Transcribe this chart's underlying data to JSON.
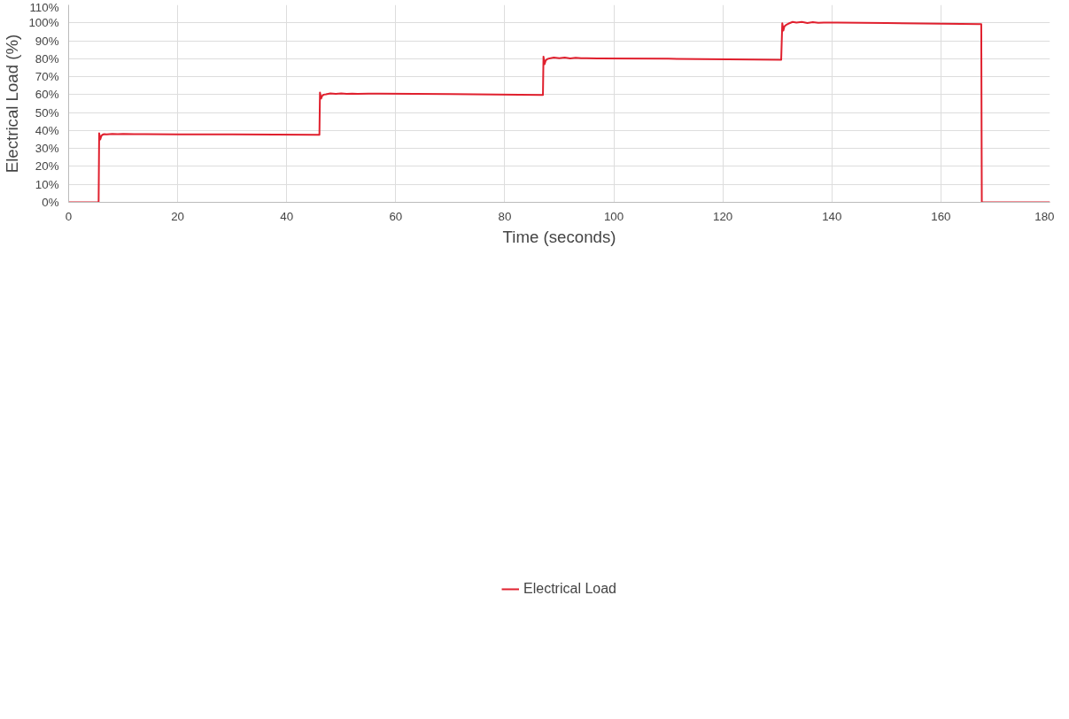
{
  "chart_data": {
    "type": "line",
    "xlabel": "Time (seconds)",
    "ylabel": "Electrical Load (%)",
    "x": [
      0,
      5.5,
      5.6,
      5.8,
      6.0,
      6.2,
      6.5,
      7,
      8,
      9,
      10,
      12,
      14,
      20,
      30,
      46.0,
      46.1,
      46.3,
      46.5,
      46.8,
      47.2,
      48,
      49,
      50,
      51,
      52,
      53,
      55,
      57,
      70,
      87.0,
      87.1,
      87.3,
      87.5,
      87.8,
      88.2,
      89,
      90,
      91,
      92,
      93,
      94,
      95,
      97,
      110,
      130.7,
      130.9,
      131.1,
      131.3,
      131.6,
      132,
      132.8,
      133.5,
      134.5,
      135.5,
      136.5,
      137.5,
      138.5,
      141,
      150,
      167.4,
      167.5,
      170,
      180
    ],
    "series": [
      {
        "name": "Electrical Load",
        "color": "#e0202e",
        "values": [
          0,
          0,
          38.5,
          35,
          37,
          37.6,
          38,
          37.9,
          38.1,
          38,
          38.1,
          38,
          38,
          37.9,
          37.8,
          37.6,
          61.2,
          57.8,
          59.3,
          60,
          60.2,
          60.7,
          60.4,
          60.7,
          60.4,
          60.6,
          60.4,
          60.5,
          60.5,
          60.3,
          59.8,
          81.2,
          77,
          79,
          79.8,
          80.2,
          80.6,
          80.3,
          80.6,
          80.2,
          80.5,
          80.3,
          80.3,
          80.2,
          80,
          79.4,
          99.8,
          95.7,
          98,
          98.8,
          99.5,
          100.5,
          100.1,
          100.5,
          99.9,
          100.4,
          100,
          100.1,
          100.1,
          99.9,
          99.3,
          0,
          0,
          0
        ]
      }
    ],
    "xlim": [
      0,
      180
    ],
    "xticks": [
      0,
      20,
      40,
      60,
      80,
      100,
      120,
      140,
      160,
      180
    ],
    "ylim": [
      0,
      110
    ],
    "yticks": [
      {
        "value": 0,
        "label": "0%"
      },
      {
        "value": 10,
        "label": "10%"
      },
      {
        "value": 20,
        "label": "20%"
      },
      {
        "value": 30,
        "label": "30%"
      },
      {
        "value": 40,
        "label": "40%"
      },
      {
        "value": 50,
        "label": "50%"
      },
      {
        "value": 60,
        "label": "60%"
      },
      {
        "value": 70,
        "label": "70%"
      },
      {
        "value": 80,
        "label": "80%"
      },
      {
        "value": 90,
        "label": "90%"
      },
      {
        "value": 100,
        "label": "100%"
      },
      {
        "value": 110,
        "label": "110%"
      }
    ],
    "grid": true,
    "legend": "bottom",
    "line_style": "solid"
  }
}
